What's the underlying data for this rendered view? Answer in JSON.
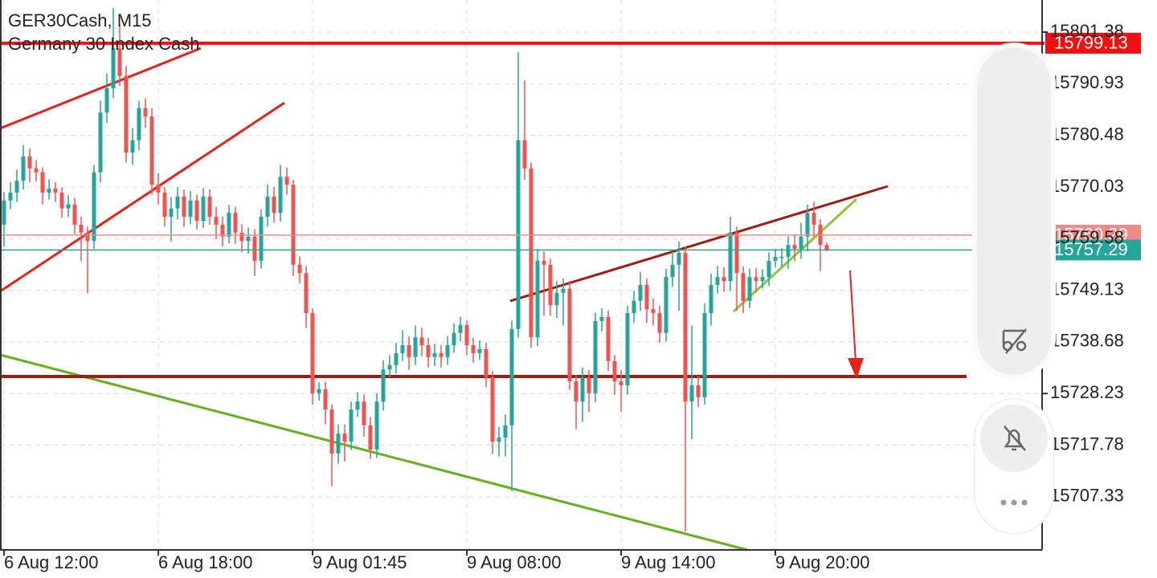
{
  "chart_data": {
    "type": "candlestick",
    "title": "GER30Cash, M15",
    "subtitle": "Germany 30 Index Cash",
    "categories": [
      "6 Aug 12:00",
      null,
      null,
      null,
      null,
      null,
      null,
      null,
      null,
      null,
      null,
      null,
      null,
      null,
      null,
      null,
      null,
      null,
      null,
      null,
      null,
      null,
      null,
      null,
      "6 Aug 18:00",
      null,
      null,
      null,
      null,
      null,
      null,
      null,
      null,
      null,
      null,
      null,
      null,
      null,
      null,
      null,
      null,
      null,
      null,
      null,
      null,
      null,
      null,
      null,
      "9 Aug 01:45",
      null,
      null,
      null,
      null,
      null,
      null,
      null,
      null,
      null,
      null,
      null,
      null,
      null,
      null,
      null,
      null,
      null,
      null,
      null,
      null,
      null,
      null,
      null,
      "9 Aug 08:00",
      null,
      null,
      null,
      null,
      null,
      null,
      null,
      null,
      null,
      null,
      null,
      null,
      null,
      null,
      null,
      null,
      null,
      null,
      null,
      null,
      null,
      null,
      null,
      "9 Aug 14:00",
      null,
      null,
      null,
      null,
      null,
      null,
      null,
      null,
      null,
      null,
      null,
      null,
      null,
      null,
      null,
      null,
      null,
      null,
      null,
      null,
      null,
      null,
      null,
      "9 Aug 20:00",
      null,
      null,
      null,
      null,
      null,
      null,
      null,
      null
    ],
    "open": [
      15762.4,
      15767.3,
      15768.9,
      15771.3,
      15776.2,
      15773.8,
      15773.0,
      15768.9,
      15769.7,
      15768.9,
      15765.7,
      15766.5,
      15762.4,
      15760.8,
      15759.1,
      15773.0,
      15785.1,
      15790.0,
      15798.1,
      15792.5,
      15777.0,
      15779.5,
      15786.0,
      15784.3,
      15770.5,
      15768.9,
      15764.0,
      15765.7,
      15768.1,
      15764.0,
      15767.3,
      15763.2,
      15768.1,
      15764.0,
      15762.4,
      15760.0,
      15764.8,
      15760.8,
      15759.1,
      15760.0,
      15755.1,
      15764.0,
      15768.1,
      15764.8,
      15772.1,
      15770.5,
      15754.3,
      15752.6,
      15744.5,
      15728.3,
      15729.1,
      15725.0,
      15716.1,
      15720.1,
      15718.5,
      15725.0,
      15726.6,
      15721.8,
      15716.9,
      15726.6,
      15733.1,
      15734.0,
      15736.4,
      15738.0,
      15735.6,
      15739.6,
      15738.0,
      15735.6,
      15736.4,
      15735.6,
      15738.0,
      15740.5,
      15742.1,
      15738.0,
      15736.4,
      15737.2,
      15731.5,
      15718.5,
      15719.3,
      15721.8,
      15741.3,
      15779.5,
      15773.8,
      15739.6,
      15755.1,
      15754.3,
      15746.1,
      15748.6,
      15749.4,
      15730.7,
      15726.6,
      15731.5,
      15728.3,
      15742.9,
      15743.7,
      15734.8,
      15730.7,
      15729.9,
      15744.5,
      15747.0,
      15750.2,
      15745.3,
      15744.5,
      15740.5,
      15751.8,
      15754.3,
      15756.7,
      15726.6,
      15729.9,
      15727.5,
      15744.5,
      15750.2,
      15751.8,
      15751.0,
      15760.8,
      15752.6,
      15747.0,
      15751.8,
      15751.0,
      15751.8,
      15755.1,
      15755.9,
      15755.9,
      15758.3,
      15757.5,
      15760.0,
      15764.8,
      15762.4,
      15758.3
    ],
    "high": [
      15769.0,
      15771.0,
      15773.5,
      15778.5,
      15777.8,
      15775.5,
      15774.0,
      15771.6,
      15771.0,
      15770.0,
      15768.4,
      15767.8,
      15764.0,
      15762.0,
      15774.5,
      15787.5,
      15793.0,
      15806.3,
      15803.0,
      15794.5,
      15782.0,
      15787.5,
      15788.0,
      15786.0,
      15772.8,
      15770.0,
      15768.0,
      15770.0,
      15769.5,
      15769.2,
      15768.5,
      15769.8,
      15769.6,
      15766.0,
      15764.0,
      15766.4,
      15766.0,
      15762.5,
      15761.8,
      15761.5,
      15765.5,
      15770.5,
      15770.0,
      15774.5,
      15774.0,
      15771.5,
      15756.0,
      15754.0,
      15745.5,
      15730.5,
      15730.6,
      15726.0,
      15722.0,
      15722.0,
      15726.6,
      15728.5,
      15728.0,
      15723.5,
      15728.3,
      15735.0,
      15736.0,
      15738.5,
      15741.0,
      15739.8,
      15742.0,
      15741.6,
      15739.5,
      15738.3,
      15738.0,
      15739.8,
      15742.5,
      15743.8,
      15743.0,
      15739.5,
      15739.0,
      15738.5,
      15732.8,
      15721.5,
      15724.0,
      15743.0,
      15797.3,
      15791.6,
      15775.0,
      15757.5,
      15757.0,
      15755.5,
      15751.0,
      15751.5,
      15751.0,
      15732.0,
      15733.5,
      15733.0,
      15744.6,
      15745.5,
      15745.0,
      15736.0,
      15733.0,
      15746.0,
      15749.0,
      15752.8,
      15751.5,
      15747.5,
      15746.0,
      15753.5,
      15757.0,
      15759.0,
      15758.0,
      15742.0,
      15731.8,
      15746.5,
      15752.5,
      15754.0,
      15753.8,
      15764.0,
      15762.0,
      15754.0,
      15753.5,
      15753.6,
      15753.4,
      15756.8,
      15757.5,
      15757.6,
      15760.0,
      15760.5,
      15762.8,
      15766.5,
      15767.0,
      15763.5,
      15758.8
    ],
    "low": [
      15758.0,
      15765.5,
      15767.0,
      15769.5,
      15771.0,
      15771.2,
      15766.5,
      15767.5,
      15767.0,
      15763.8,
      15764.0,
      15760.5,
      15755.0,
      15748.5,
      15757.5,
      15771.0,
      15783.0,
      15788.0,
      15790.5,
      15775.0,
      15774.5,
      15777.5,
      15782.0,
      15768.5,
      15766.5,
      15762.0,
      15759.0,
      15763.5,
      15762.0,
      15762.5,
      15761.5,
      15761.8,
      15762.4,
      15759.5,
      15758.0,
      15758.6,
      15758.5,
      15756.8,
      15756.5,
      15752.0,
      15753.5,
      15762.0,
      15762.8,
      15763.0,
      15768.5,
      15752.0,
      15750.5,
      15741.5,
      15726.0,
      15726.8,
      15722.0,
      15709.5,
      15714.0,
      15714.5,
      15716.8,
      15723.5,
      15719.5,
      15715.0,
      15715.2,
      15724.8,
      15731.5,
      15732.3,
      15734.8,
      15733.0,
      15734.0,
      15735.8,
      15733.5,
      15733.8,
      15733.5,
      15734.0,
      15736.5,
      15738.8,
      15736.0,
      15734.5,
      15735.0,
      15729.5,
      15716.0,
      15715.5,
      15715.5,
      15708.5,
      15739.5,
      15771.5,
      15737.5,
      15737.8,
      15744.0,
      15744.0,
      15743.5,
      15742.0,
      15729.0,
      15721.0,
      15722.5,
      15724.5,
      15726.5,
      15740.8,
      15732.8,
      15728.0,
      15724.5,
      15728.0,
      15742.5,
      15745.0,
      15742.5,
      15742.0,
      15738.5,
      15738.8,
      15749.8,
      15745.0,
      15700.3,
      15719.0,
      15725.5,
      15726.0,
      15742.0,
      15748.5,
      15748.8,
      15749.0,
      15745.0,
      15744.5,
      15745.5,
      15748.8,
      15749.5,
      15750.0,
      15753.8,
      15753.8,
      15753.5,
      15755.0,
      15755.5,
      15757.0,
      15760.0,
      15753.0,
      15757.0
    ],
    "close": [
      15767.3,
      15768.9,
      15771.3,
      15776.2,
      15773.8,
      15773.0,
      15768.9,
      15769.7,
      15768.9,
      15765.7,
      15766.5,
      15762.4,
      15760.8,
      15759.1,
      15773.0,
      15785.1,
      15790.0,
      15798.1,
      15792.5,
      15777.0,
      15779.5,
      15786.0,
      15784.3,
      15770.5,
      15768.9,
      15764.0,
      15765.7,
      15768.1,
      15764.0,
      15767.3,
      15763.2,
      15768.1,
      15764.0,
      15762.4,
      15760.0,
      15764.8,
      15760.8,
      15759.1,
      15760.0,
      15755.1,
      15764.0,
      15768.1,
      15764.8,
      15772.1,
      15770.5,
      15754.3,
      15752.6,
      15744.5,
      15728.3,
      15729.1,
      15725.0,
      15716.1,
      15720.1,
      15718.5,
      15725.0,
      15726.6,
      15721.8,
      15716.9,
      15726.6,
      15733.1,
      15734.0,
      15736.4,
      15738.0,
      15735.6,
      15739.6,
      15738.0,
      15735.6,
      15736.4,
      15735.6,
      15738.0,
      15740.5,
      15742.1,
      15738.0,
      15736.4,
      15737.2,
      15731.5,
      15718.5,
      15719.3,
      15721.8,
      15741.3,
      15779.5,
      15773.8,
      15739.6,
      15755.1,
      15754.3,
      15746.1,
      15748.6,
      15749.4,
      15730.7,
      15726.6,
      15731.5,
      15728.3,
      15742.9,
      15743.7,
      15734.8,
      15730.7,
      15729.9,
      15744.5,
      15747.0,
      15750.2,
      15745.3,
      15744.5,
      15740.5,
      15751.8,
      15754.3,
      15756.7,
      15726.6,
      15729.9,
      15727.5,
      15744.5,
      15750.2,
      15751.8,
      15751.0,
      15760.8,
      15752.6,
      15747.0,
      15751.8,
      15751.0,
      15751.8,
      15755.1,
      15755.9,
      15755.9,
      15758.3,
      15757.5,
      15760.0,
      15764.8,
      15762.4,
      15758.3,
      15757.3
    ],
    "up_color": "#26a69a",
    "down_color": "#ef5350",
    "ylim": [
      15696.58,
      15807.88
    ],
    "yticks": [
      15801.38,
      15790.93,
      15780.48,
      15770.03,
      15759.58,
      15749.13,
      15738.68,
      15728.23,
      15717.78,
      15707.33
    ],
    "grid": true,
    "price_lines": [
      {
        "value": 15799.13,
        "color": "#f01010"
      },
      {
        "value": 15760.29,
        "color": "#f08a86"
      },
      {
        "value": 15757.29,
        "color": "#26a69a"
      }
    ]
  }
}
